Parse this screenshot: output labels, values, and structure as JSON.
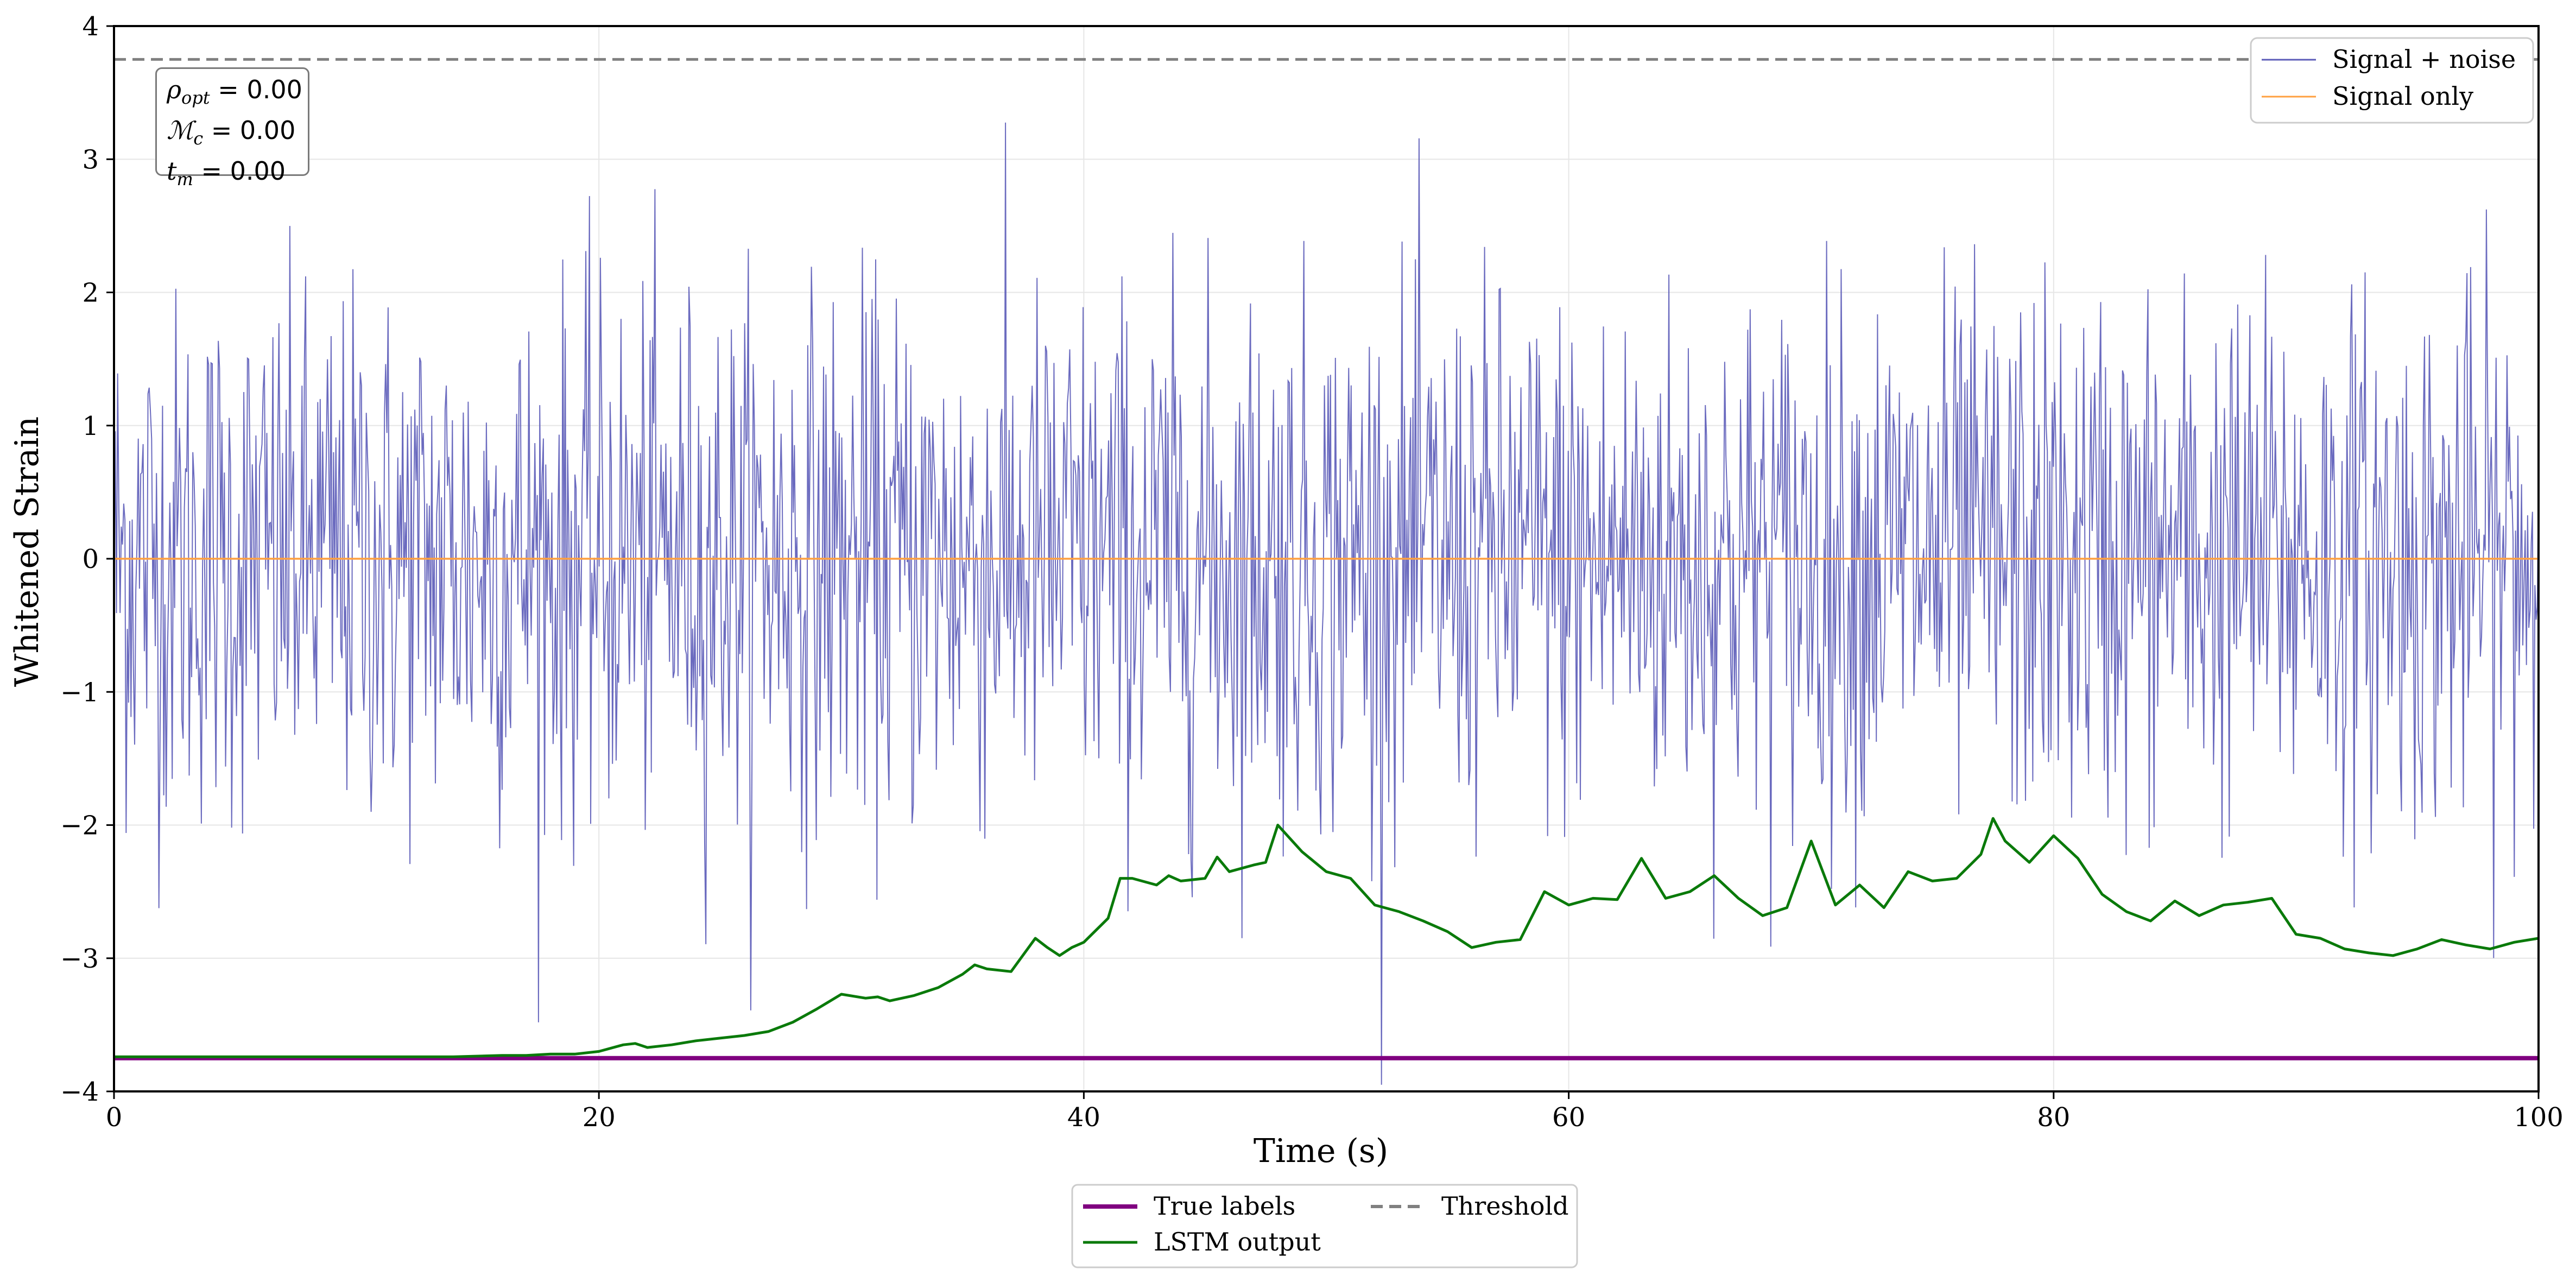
{
  "chart_data": {
    "type": "line",
    "xlabel": "Time (s)",
    "ylabel": "Whitened Strain",
    "xlim": [
      0,
      100
    ],
    "ylim": [
      -4,
      4
    ],
    "xticks": [
      0,
      20,
      40,
      60,
      80,
      100
    ],
    "yticks": [
      -4,
      -3,
      -2,
      -1,
      0,
      1,
      2,
      3,
      4
    ],
    "tick_labels_x": [
      "0",
      "20",
      "40",
      "60",
      "80",
      "100"
    ],
    "tick_labels_y": [
      "−4",
      "−3",
      "−2",
      "−1",
      "0",
      "1",
      "2",
      "3",
      "4"
    ],
    "grid": true,
    "legend_top_right": [
      "Signal + noise",
      "Signal only"
    ],
    "legend_bottom": [
      "True labels",
      "LSTM output",
      "Threshold"
    ],
    "annotation": {
      "rho_label": "ρ",
      "rho_sub": "opt",
      "rho_value": " = 0.00",
      "mc_label": "ℳ",
      "mc_sub": "c",
      "mc_value": " = 0.00",
      "tm_label": "t",
      "tm_sub": "m",
      "tm_value": " = 0.00"
    },
    "colors": {
      "signal_noise": "#5b5bb8",
      "signal_only": "#ffa040",
      "true_labels": "#800080",
      "lstm": "#0a7a0a",
      "threshold": "#808080"
    },
    "series": [
      {
        "name": "Signal + noise",
        "kind": "noise",
        "samples": 2000,
        "std": 1.0,
        "clip": [
          -3.95,
          3.95
        ]
      },
      {
        "name": "Signal only",
        "x": [
          0,
          100
        ],
        "y": [
          0,
          0
        ]
      },
      {
        "name": "True labels",
        "x": [
          0,
          100
        ],
        "y": [
          -3.75,
          -3.75
        ]
      },
      {
        "name": "Threshold",
        "x": [
          0,
          100
        ],
        "y": [
          3.75,
          3.75
        ]
      },
      {
        "name": "LSTM output",
        "x": [
          0,
          2,
          4,
          6,
          8,
          10,
          12,
          14,
          16,
          17,
          18,
          19,
          20,
          21,
          21.5,
          22,
          23,
          24,
          25,
          26,
          27,
          28,
          29,
          30,
          31,
          31.5,
          32,
          33,
          34,
          35,
          35.5,
          36,
          37,
          38,
          38.5,
          39,
          39.5,
          40,
          41,
          41.5,
          42,
          43,
          43.5,
          44,
          45,
          45.5,
          46,
          47,
          47.5,
          48,
          49,
          50,
          51,
          52,
          53,
          54,
          55,
          56,
          57,
          58,
          59,
          60,
          61,
          62,
          63,
          64,
          65,
          66,
          67,
          68,
          69,
          70,
          71,
          72,
          73,
          74,
          75,
          76,
          77,
          77.5,
          78,
          79,
          80,
          81,
          82,
          83,
          84,
          85,
          86,
          87,
          88,
          89,
          90,
          91,
          92,
          93,
          94,
          95,
          96,
          97,
          98,
          99,
          100
        ],
        "y": [
          -3.74,
          -3.74,
          -3.74,
          -3.74,
          -3.74,
          -3.74,
          -3.74,
          -3.74,
          -3.73,
          -3.73,
          -3.72,
          -3.72,
          -3.7,
          -3.65,
          -3.64,
          -3.67,
          -3.65,
          -3.62,
          -3.6,
          -3.58,
          -3.55,
          -3.48,
          -3.38,
          -3.27,
          -3.3,
          -3.29,
          -3.32,
          -3.28,
          -3.22,
          -3.12,
          -3.05,
          -3.08,
          -3.1,
          -2.85,
          -2.92,
          -2.98,
          -2.92,
          -2.88,
          -2.7,
          -2.4,
          -2.4,
          -2.45,
          -2.38,
          -2.42,
          -2.4,
          -2.24,
          -2.35,
          -2.3,
          -2.28,
          -2.0,
          -2.2,
          -2.35,
          -2.4,
          -2.6,
          -2.65,
          -2.72,
          -2.8,
          -2.92,
          -2.88,
          -2.86,
          -2.5,
          -2.6,
          -2.55,
          -2.56,
          -2.25,
          -2.55,
          -2.5,
          -2.38,
          -2.55,
          -2.68,
          -2.62,
          -2.12,
          -2.6,
          -2.45,
          -2.62,
          -2.35,
          -2.42,
          -2.4,
          -2.22,
          -1.95,
          -2.12,
          -2.28,
          -2.08,
          -2.25,
          -2.52,
          -2.65,
          -2.72,
          -2.57,
          -2.68,
          -2.6,
          -2.58,
          -2.55,
          -2.82,
          -2.85,
          -2.93,
          -2.96,
          -2.98,
          -2.93,
          -2.86,
          -2.9,
          -2.93,
          -2.88,
          -2.85
        ]
      }
    ]
  }
}
